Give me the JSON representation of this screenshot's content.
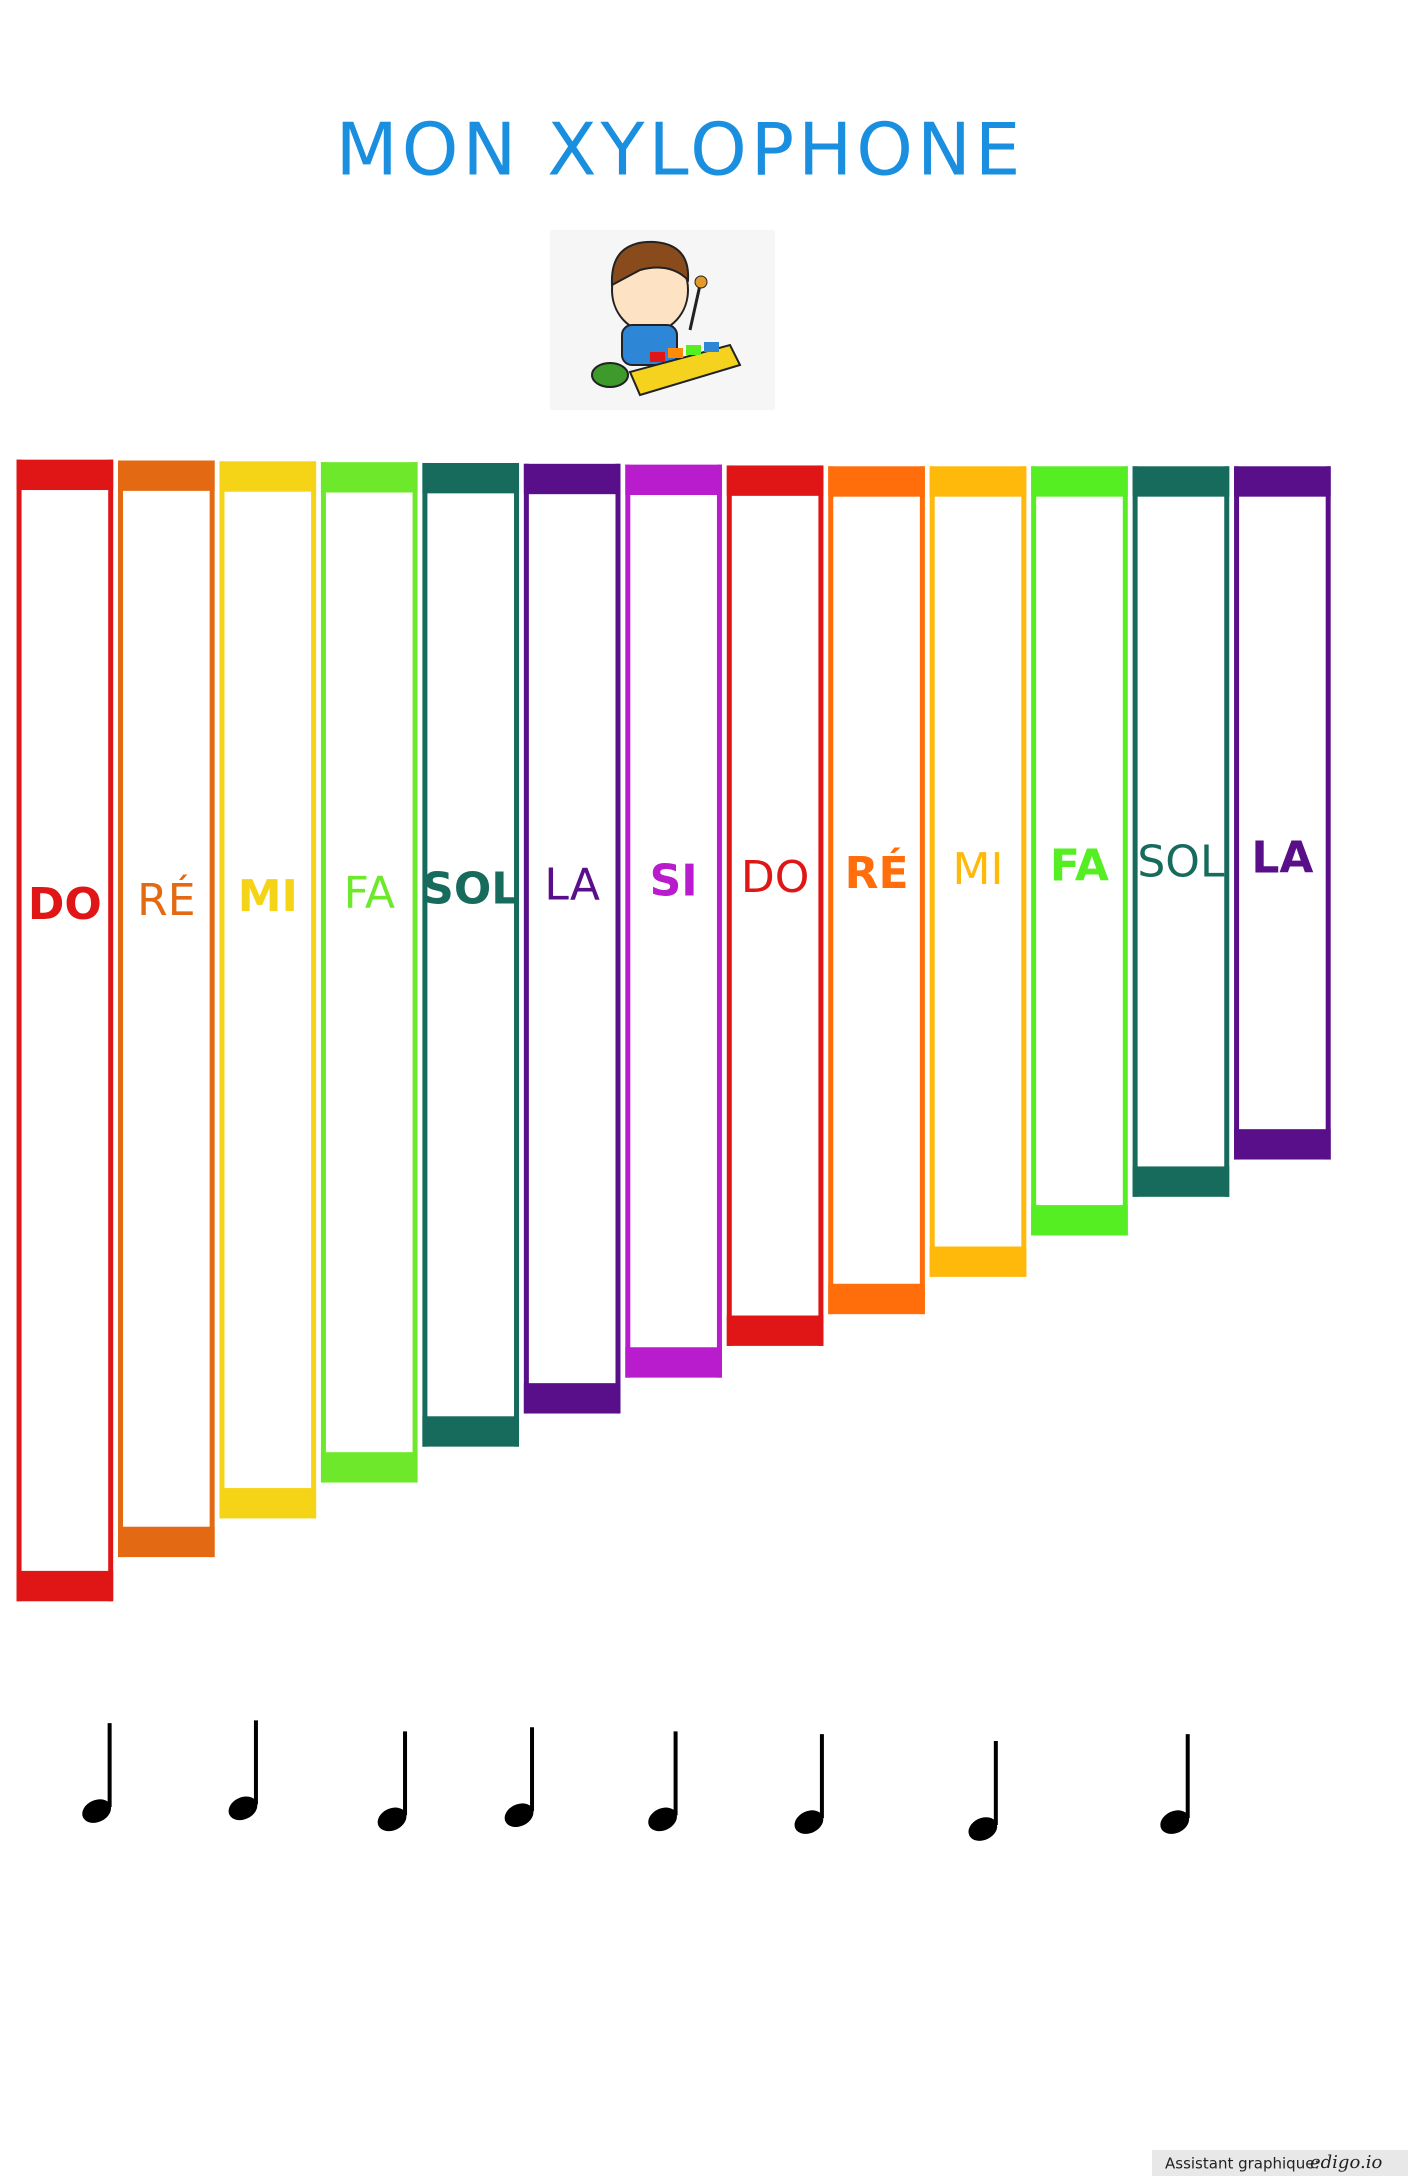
{
  "header": {
    "title": "MON XYLOPHONE"
  },
  "bars": [
    {
      "label": "DO",
      "color": "#e01515"
    },
    {
      "label": "RÉ",
      "color": "#e36a12"
    },
    {
      "label": "MI",
      "color": "#f5d417"
    },
    {
      "label": "FA",
      "color": "#6ee82a"
    },
    {
      "label": "SOL",
      "color": "#176b5d"
    },
    {
      "label": "LA",
      "color": "#5a0f8a"
    },
    {
      "label": "SI",
      "color": "#b81ccc"
    },
    {
      "label": "DO",
      "color": "#e01515"
    },
    {
      "label": "RÉ",
      "color": "#ff6e0a"
    },
    {
      "label": "MI",
      "color": "#ffb90a"
    },
    {
      "label": "FA",
      "color": "#55ee22"
    },
    {
      "label": "SOL",
      "color": "#176b5d"
    },
    {
      "label": "LA",
      "color": "#5a0f8a"
    }
  ],
  "footer": {
    "text": "Assistant graphique:",
    "brand": "edigo.io"
  }
}
